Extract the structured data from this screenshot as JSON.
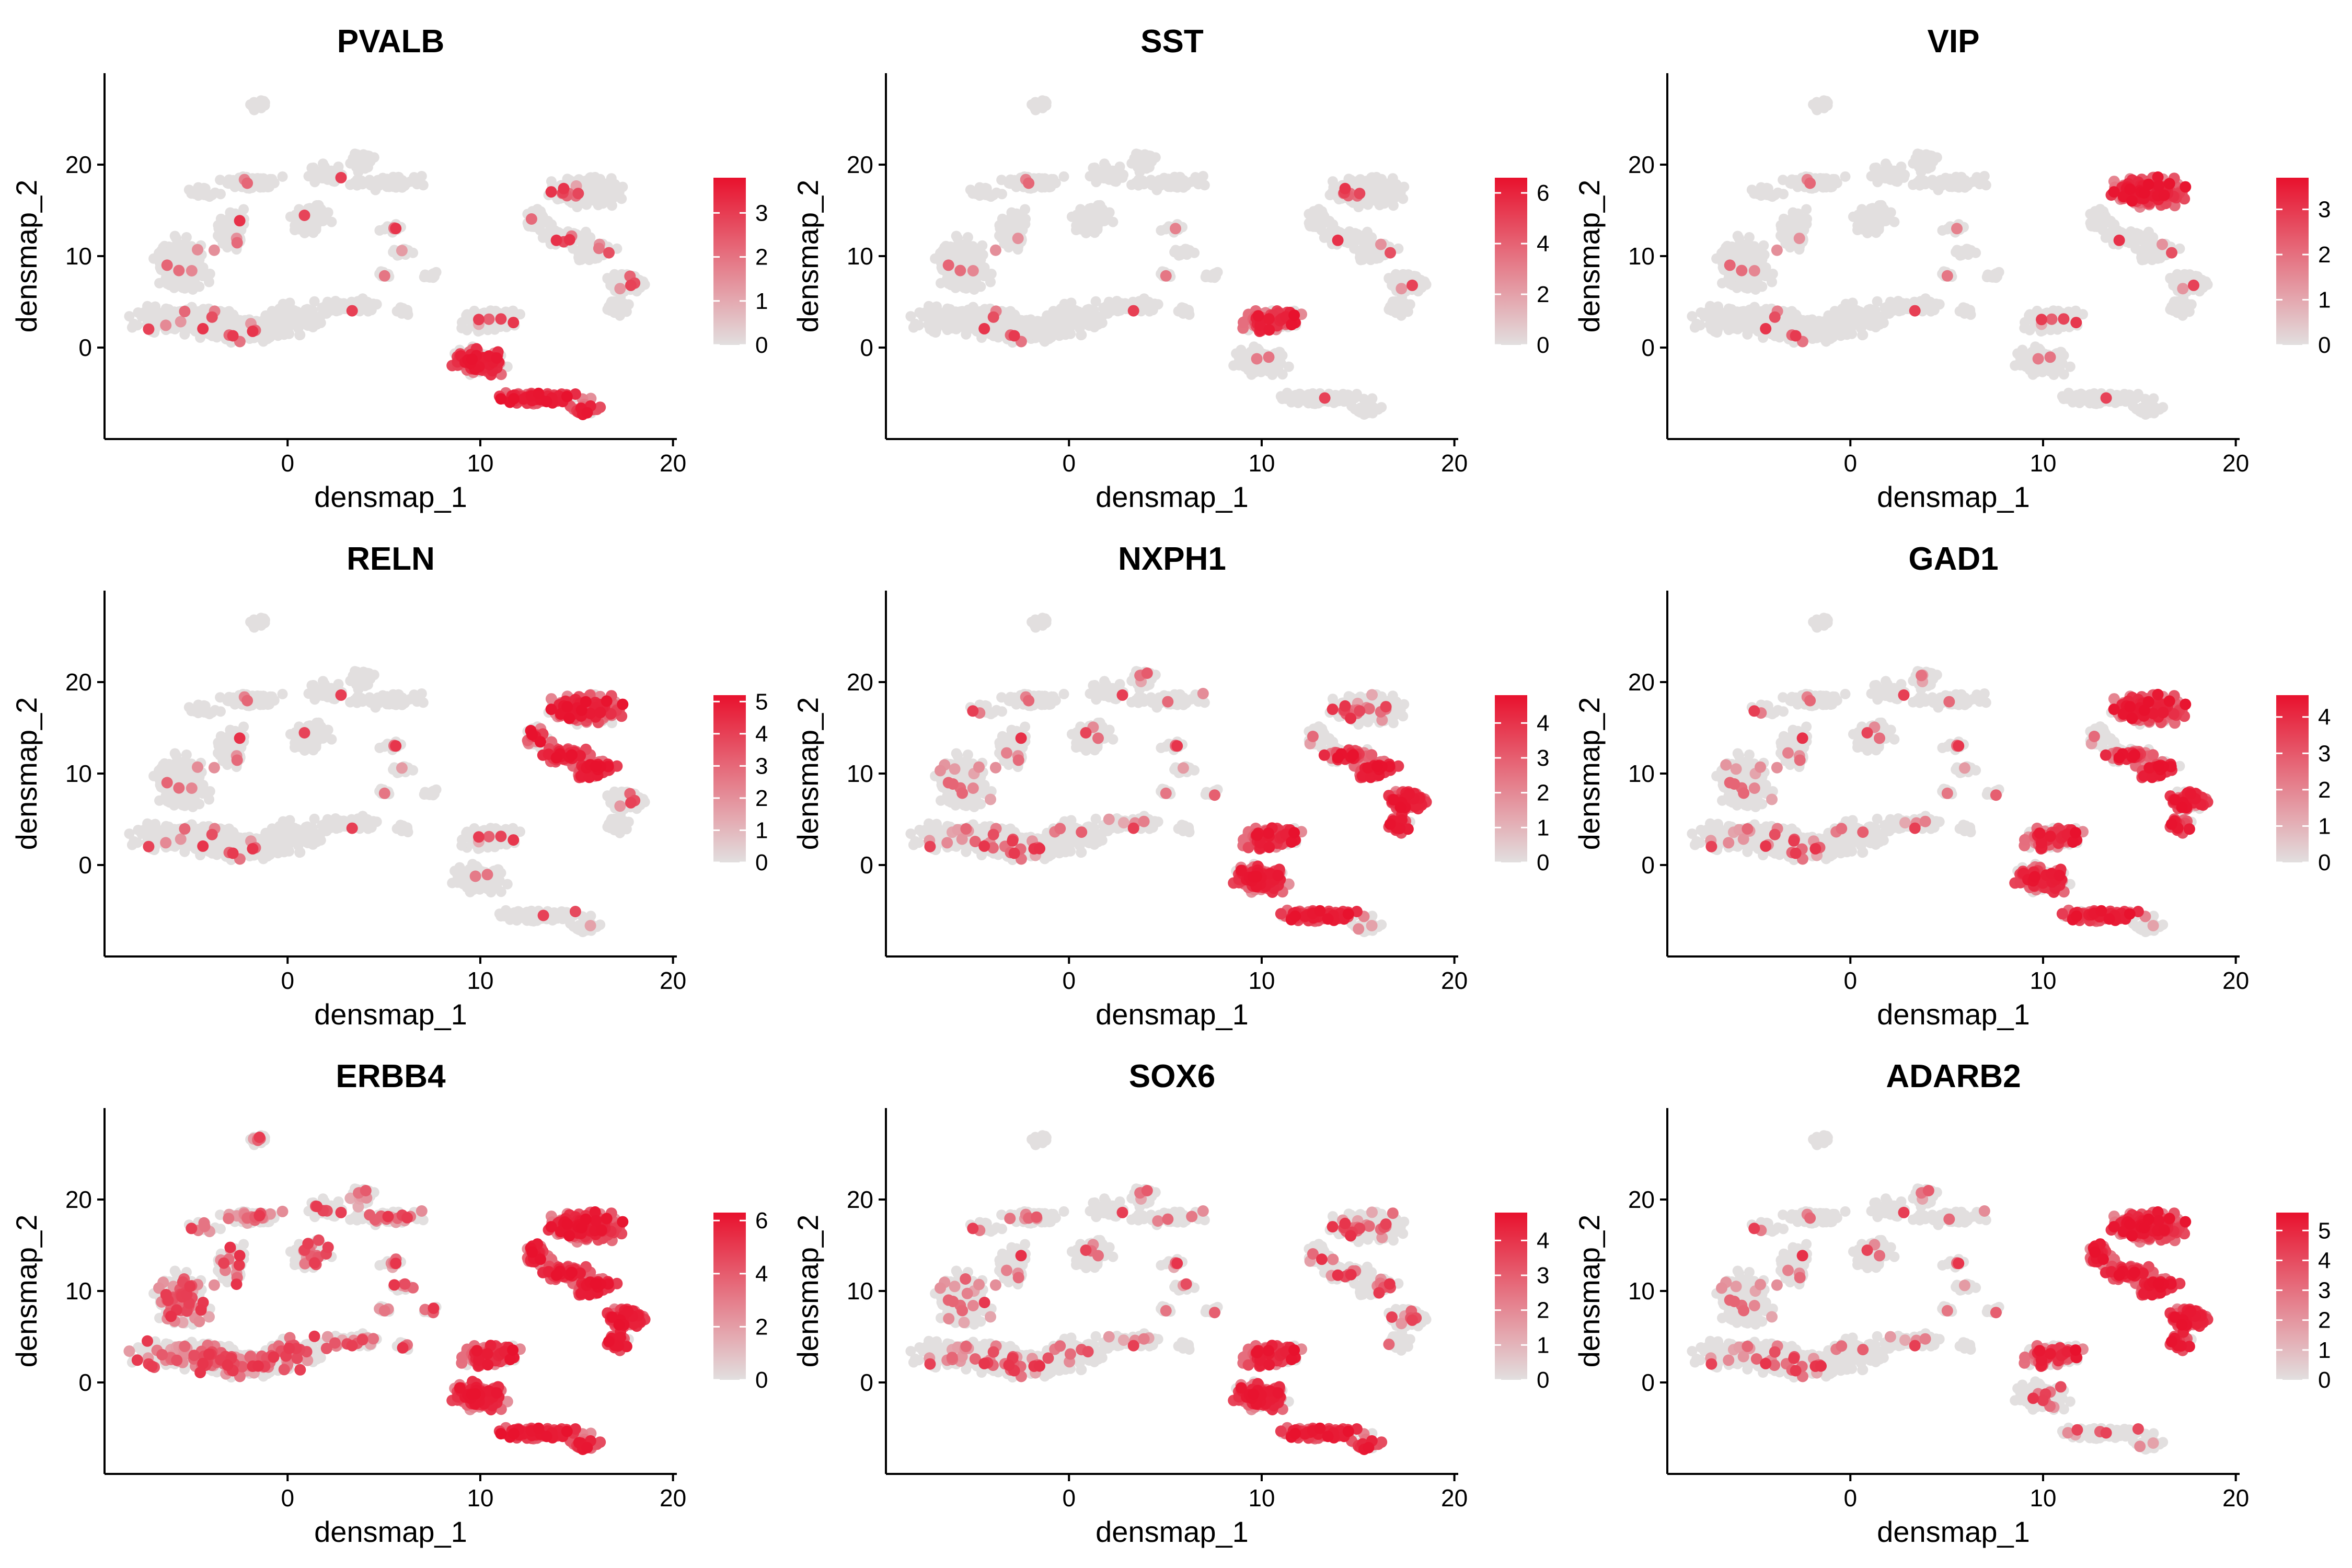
{
  "figure": {
    "xlabel": "densmap_1",
    "ylabel": "densmap_2",
    "xticks": [
      0,
      10,
      20
    ],
    "yticks": [
      0,
      10,
      20
    ],
    "xlim": [
      -9.5,
      20.2
    ],
    "ylim": [
      -10,
      30
    ],
    "low_color": "#e2dfdf",
    "high_color": "#e8112d"
  },
  "chart_data": [
    {
      "type": "scatter",
      "title": "PVALB",
      "legend_ticks": [
        0,
        1,
        2,
        3
      ],
      "legend_max": 3.8,
      "high_region": "bottom-tail",
      "scattered_level": 0.03
    },
    {
      "type": "scatter",
      "title": "SST",
      "legend_ticks": [
        0,
        2,
        4,
        6
      ],
      "legend_max": 6.6,
      "high_region": "mid-cluster",
      "scattered_level": 0.02
    },
    {
      "type": "scatter",
      "title": "VIP",
      "legend_ticks": [
        0,
        1,
        2,
        3
      ],
      "legend_max": 3.7,
      "high_region": "upper-right-top",
      "scattered_level": 0.02
    },
    {
      "type": "scatter",
      "title": "RELN",
      "legend_ticks": [
        0,
        1,
        2,
        3,
        4,
        5
      ],
      "legend_max": 5.2,
      "high_region": "upper-right-middle",
      "scattered_level": 0.03
    },
    {
      "type": "scatter",
      "title": "NXPH1",
      "legend_ticks": [
        0,
        1,
        2,
        3,
        4
      ],
      "legend_max": 4.8,
      "high_region": "lower-cluster-and-right-arm",
      "scattered_level": 0.06
    },
    {
      "type": "scatter",
      "title": "GAD1",
      "legend_ticks": [
        0,
        1,
        2,
        3,
        4
      ],
      "legend_max": 4.6,
      "high_region": "all-right-moderate",
      "scattered_level": 0.05
    },
    {
      "type": "scatter",
      "title": "ERBB4",
      "legend_ticks": [
        0,
        2,
        4,
        6
      ],
      "legend_max": 6.3,
      "high_region": "all-right-strong",
      "scattered_level": 0.22
    },
    {
      "type": "scatter",
      "title": "SOX6",
      "legend_ticks": [
        0,
        1,
        2,
        3,
        4
      ],
      "legend_max": 4.8,
      "high_region": "lower-cluster",
      "scattered_level": 0.08
    },
    {
      "type": "scatter",
      "title": "ADARB2",
      "legend_ticks": [
        0,
        1,
        2,
        3,
        4,
        5
      ],
      "legend_max": 5.6,
      "high_region": "upper-right",
      "scattered_level": 0.06
    }
  ]
}
